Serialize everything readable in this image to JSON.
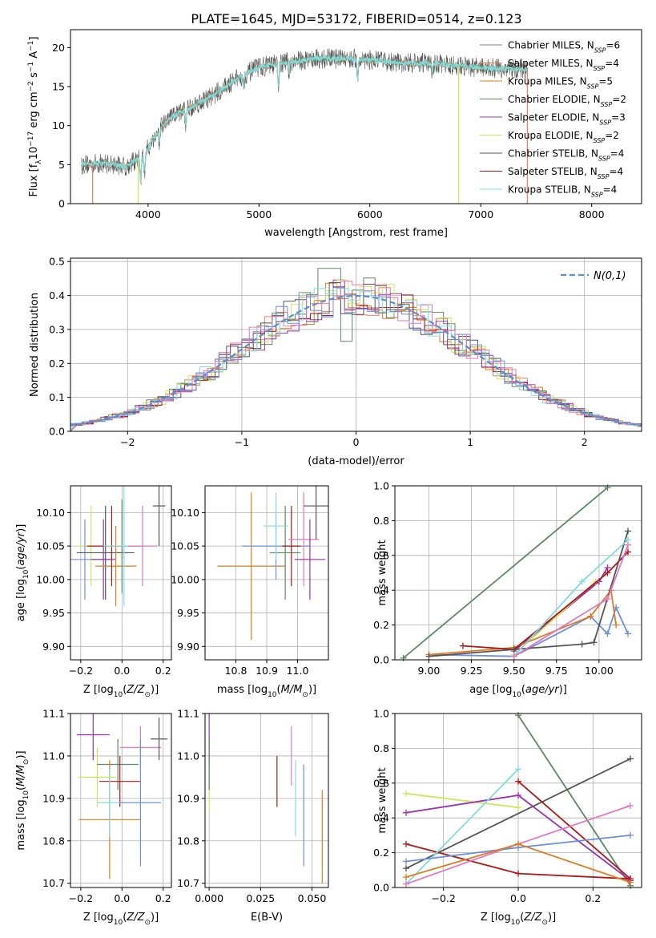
{
  "figure": {
    "title": "PLATE=1645, MJD=53172, FIBERID=0514, z=0.123"
  },
  "colors": {
    "chabrier_miles": "#808080",
    "salpeter_miles": "#ee7f6b",
    "kroupa_miles": "#e07b1c",
    "chabrier_elodie": "#5a8a60",
    "salpeter_elodie": "#9a30b0",
    "kroupa_elodie": "#cfe65a",
    "chabrier_stelib": "#555555",
    "salpeter_stelib": "#b01818",
    "kroupa_stelib": "#80dce0",
    "pink": "#e377c2",
    "blue": "#6b8fe0",
    "normal": "#5b8fd0"
  },
  "chart_data": [
    {
      "id": "spectrum",
      "type": "line",
      "xlabel": "wavelength [Angstrom, rest frame]",
      "ylabel": "Flux [f_λ 10^-17 erg cm^-2 s^-1 A^-1]",
      "xlim": [
        3300,
        8450
      ],
      "ylim": [
        0,
        22.3
      ],
      "xticks": [
        4000,
        5000,
        6000,
        7000,
        8000
      ],
      "yticks": [
        0,
        5,
        10,
        15,
        20
      ],
      "legend_position": "top-right",
      "legend": [
        "Chabrier MILES, N_SSP=6",
        "Salpeter MILES, N_SSP=4",
        "Kroupa MILES, N_SSP=5",
        "Chabrier ELODIE, N_SSP=2",
        "Salpeter ELODIE, N_SSP=3",
        "Kroupa ELODIE, N_SSP=2",
        "Chabrier STELIB, N_SSP=4",
        "Salpeter STELIB, N_SSP=4",
        "Kroupa STELIB, N_SSP=4"
      ],
      "continuum": [
        [
          3400,
          5.0
        ],
        [
          3600,
          5.2
        ],
        [
          3800,
          4.8
        ],
        [
          3950,
          6.0
        ],
        [
          4100,
          9.5
        ],
        [
          4200,
          11.0
        ],
        [
          4400,
          12.5
        ],
        [
          4600,
          14.0
        ],
        [
          4800,
          16.0
        ],
        [
          5000,
          17.5
        ],
        [
          5200,
          18.0
        ],
        [
          5500,
          18.6
        ],
        [
          5800,
          18.6
        ],
        [
          6000,
          18.4
        ],
        [
          6300,
          18.0
        ],
        [
          6500,
          18.0
        ],
        [
          6800,
          17.7
        ],
        [
          7000,
          17.4
        ],
        [
          7200,
          17.3
        ],
        [
          7420,
          17.2
        ]
      ]
    },
    {
      "id": "residuals",
      "type": "bar",
      "xlabel": "(data-model)/error",
      "ylabel": "Normed distribution",
      "xlim": [
        -2.5,
        2.5
      ],
      "ylim": [
        0,
        0.51
      ],
      "xticks": [
        -2,
        -1,
        0,
        1,
        2
      ],
      "yticks": [
        0.0,
        0.1,
        0.2,
        0.3,
        0.4,
        0.5
      ],
      "legend_position": "top-right",
      "legend": [
        "N(0,1)"
      ]
    },
    {
      "id": "age_vs_Z",
      "type": "scatter",
      "xlabel": "Z [log10(Z/Z⊙)]",
      "ylabel": "age [log10(age/yr)]",
      "xlim": [
        -0.25,
        0.24
      ],
      "ylim": [
        9.88,
        10.14
      ],
      "xticks": [
        -0.2,
        0.0,
        0.2
      ],
      "yticks": [
        9.9,
        9.95,
        10.0,
        10.05,
        10.1
      ],
      "points": [
        {
          "x": -0.15,
          "y": 10.05,
          "xerr": 0.07,
          "yerr": 0.06,
          "color": "kroupa_elodie"
        },
        {
          "x": -0.18,
          "y": 10.03,
          "xerr": 0.12,
          "yerr": 0.06,
          "color": "blue"
        },
        {
          "x": -0.08,
          "y": 10.04,
          "xerr": 0.14,
          "yerr": 0.07,
          "color": "chabrier_stelib"
        },
        {
          "x": -0.09,
          "y": 10.03,
          "xerr": 0.06,
          "yerr": 0.06,
          "color": "salpeter_elodie"
        },
        {
          "x": -0.03,
          "y": 10.02,
          "xerr": 0.1,
          "yerr": 0.06,
          "color": "kroupa_miles"
        },
        {
          "x": -0.05,
          "y": 10.05,
          "xerr": 0.12,
          "yerr": 0.06,
          "color": "salpeter_stelib"
        },
        {
          "x": 0.0,
          "y": 10.05,
          "xerr": 0.02,
          "yerr": 0.07,
          "color": "chabrier_elodie"
        },
        {
          "x": 0.01,
          "y": 10.05,
          "xerr": 0.1,
          "yerr": 0.09,
          "color": "kroupa_stelib"
        },
        {
          "x": 0.1,
          "y": 10.05,
          "xerr": 0.07,
          "yerr": 0.06,
          "color": "pink"
        },
        {
          "x": 0.18,
          "y": 10.11,
          "xerr": 0.03,
          "yerr": 0.06,
          "color": "chabrier_stelib"
        }
      ]
    },
    {
      "id": "age_vs_mass",
      "type": "scatter",
      "xlabel": "mass [log10(M/M⊙)]",
      "xlim": [
        10.7,
        11.1
      ],
      "ylim": [
        9.88,
        10.14
      ],
      "xticks": [
        10.8,
        10.9,
        11.0
      ],
      "yticks": [
        9.9,
        9.95,
        10.0,
        10.05,
        10.1
      ],
      "points": [
        {
          "x": 10.85,
          "y": 10.02,
          "xerr": 0.11,
          "yerr": 0.11,
          "color": "kroupa_miles"
        },
        {
          "x": 10.93,
          "y": 10.05,
          "xerr": 0.11,
          "yerr": 0.05,
          "color": "blue"
        },
        {
          "x": 10.96,
          "y": 10.04,
          "xerr": 0.05,
          "yerr": 0.07,
          "color": "chabrier_elodie"
        },
        {
          "x": 10.98,
          "y": 10.05,
          "xerr": 0.03,
          "yerr": 0.06,
          "color": "salpeter_stelib"
        },
        {
          "x": 10.93,
          "y": 10.08,
          "xerr": 0.04,
          "yerr": 0.05,
          "color": "kroupa_stelib"
        },
        {
          "x": 11.02,
          "y": 10.06,
          "xerr": 0.05,
          "yerr": 0.07,
          "color": "pink"
        },
        {
          "x": 11.06,
          "y": 10.11,
          "xerr": 0.04,
          "yerr": 0.05,
          "color": "chabrier_stelib"
        },
        {
          "x": 11.04,
          "y": 10.03,
          "xerr": 0.05,
          "yerr": 0.06,
          "color": "salpeter_elodie"
        }
      ]
    },
    {
      "id": "weight_vs_age",
      "type": "line",
      "xlabel": "age [log10(age/yr)]",
      "ylabel": "mass weight",
      "xlim": [
        8.8,
        10.25
      ],
      "ylim": [
        0,
        1.0
      ],
      "xticks": [
        9.0,
        9.25,
        9.5,
        9.75,
        10.0
      ],
      "yticks": [
        0.0,
        0.2,
        0.4,
        0.6,
        0.8,
        1.0
      ],
      "series": [
        {
          "color": "chabrier_elodie",
          "x": [
            8.85,
            10.05
          ],
          "y": [
            0.01,
            0.99
          ]
        },
        {
          "color": "salpeter_elodie",
          "x": [
            9.5,
            10.0,
            10.05
          ],
          "y": [
            0.05,
            0.45,
            0.53
          ]
        },
        {
          "color": "kroupa_elodie",
          "x": [
            9.5,
            9.98
          ],
          "y": [
            0.03,
            0.45
          ]
        },
        {
          "color": "blue",
          "x": [
            9.0,
            9.5,
            9.95,
            10.05,
            10.1,
            10.17
          ],
          "y": [
            0.03,
            0.02,
            0.25,
            0.15,
            0.3,
            0.15
          ]
        },
        {
          "color": "kroupa_miles",
          "x": [
            9.0,
            9.5,
            9.95,
            10.07,
            10.1
          ],
          "y": [
            0.03,
            0.07,
            0.25,
            0.4,
            0.2
          ]
        },
        {
          "color": "salpeter_stelib",
          "x": [
            9.2,
            9.5,
            10.05,
            10.17
          ],
          "y": [
            0.08,
            0.06,
            0.5,
            0.62
          ]
        },
        {
          "color": "chabrier_stelib",
          "x": [
            9.0,
            9.5,
            9.9,
            9.97,
            10.17
          ],
          "y": [
            0.02,
            0.06,
            0.09,
            0.1,
            0.74
          ]
        },
        {
          "color": "kroupa_stelib",
          "x": [
            9.5,
            9.9,
            10.17
          ],
          "y": [
            0.02,
            0.45,
            0.69
          ]
        },
        {
          "color": "pink",
          "x": [
            9.5,
            10.05,
            10.17
          ],
          "y": [
            0.02,
            0.35,
            0.66
          ]
        }
      ]
    },
    {
      "id": "mass_vs_Z",
      "type": "scatter",
      "xlabel": "Z [log10(Z/Z⊙)]",
      "ylabel": "mass [log10(M/M⊙)]",
      "xlim": [
        -0.25,
        0.24
      ],
      "ylim": [
        10.69,
        11.1
      ],
      "xticks": [
        -0.2,
        0.0,
        0.2
      ],
      "yticks": [
        10.7,
        10.8,
        10.9,
        11.0,
        11.1
      ],
      "points": [
        {
          "x": -0.14,
          "y": 11.05,
          "xerr": 0.08,
          "yerr": 0.06,
          "color": "salpeter_elodie"
        },
        {
          "x": -0.12,
          "y": 10.95,
          "xerr": 0.09,
          "yerr": 0.07,
          "color": "kroupa_elodie"
        },
        {
          "x": -0.02,
          "y": 10.98,
          "xerr": 0.1,
          "yerr": 0.06,
          "color": "chabrier_elodie"
        },
        {
          "x": -0.01,
          "y": 10.94,
          "xerr": 0.1,
          "yerr": 0.06,
          "color": "salpeter_stelib"
        },
        {
          "x": -0.06,
          "y": 10.85,
          "xerr": 0.15,
          "yerr": 0.14,
          "color": "kroupa_miles"
        },
        {
          "x": -0.06,
          "y": 10.89,
          "xerr": 0.06,
          "yerr": 0.08,
          "color": "kroupa_stelib"
        },
        {
          "x": 0.09,
          "y": 11.02,
          "xerr": 0.1,
          "yerr": 0.05,
          "color": "pink"
        },
        {
          "x": 0.09,
          "y": 10.89,
          "xerr": 0.1,
          "yerr": 0.15,
          "color": "blue"
        },
        {
          "x": 0.18,
          "y": 11.04,
          "xerr": 0.04,
          "yerr": 0.05,
          "color": "chabrier_stelib"
        }
      ]
    },
    {
      "id": "mass_vs_ebv",
      "type": "scatter",
      "xlabel": "E(B-V)",
      "xlim": [
        -0.002,
        0.058
      ],
      "ylim": [
        10.69,
        11.1
      ],
      "xticks": [
        0.0,
        0.025,
        0.05
      ],
      "yticks": [
        10.7,
        10.8,
        10.9,
        11.0,
        11.1
      ],
      "points": [
        {
          "x": 0.0,
          "y": 10.95,
          "xerr": 0,
          "yerr": 0.08,
          "color": "kroupa_elodie"
        },
        {
          "x": 0.0,
          "y": 11.04,
          "xerr": 0,
          "yerr": 0.06,
          "color": "salpeter_elodie"
        },
        {
          "x": 0.0,
          "y": 10.98,
          "xerr": 0,
          "yerr": 0.06,
          "color": "chabrier_elodie"
        },
        {
          "x": 0.033,
          "y": 10.94,
          "xerr": 0,
          "yerr": 0.06,
          "color": "salpeter_stelib"
        },
        {
          "x": 0.04,
          "y": 11.0,
          "xerr": 0,
          "yerr": 0.07,
          "color": "pink"
        },
        {
          "x": 0.042,
          "y": 10.9,
          "xerr": 0,
          "yerr": 0.09,
          "color": "kroupa_stelib"
        },
        {
          "x": 0.046,
          "y": 10.86,
          "xerr": 0,
          "yerr": 0.12,
          "color": "blue"
        },
        {
          "x": 0.055,
          "y": 10.81,
          "xerr": 0,
          "yerr": 0.11,
          "color": "kroupa_miles"
        }
      ]
    },
    {
      "id": "weight_vs_Z",
      "type": "line",
      "xlabel": "Z [log10(Z/Z⊙)]",
      "ylabel": "mass weight",
      "xlim": [
        -0.33,
        0.33
      ],
      "ylim": [
        0,
        1.0
      ],
      "xticks": [
        -0.2,
        0.0,
        0.2
      ],
      "yticks": [
        0.0,
        0.2,
        0.4,
        0.6,
        0.8,
        1.0
      ],
      "series": [
        {
          "color": "chabrier_elodie",
          "x": [
            0.0,
            0.3
          ],
          "y": [
            0.99,
            0.01
          ]
        },
        {
          "color": "chabrier_stelib",
          "x": [
            -0.3,
            0.3
          ],
          "y": [
            0.11,
            0.74
          ]
        },
        {
          "color": "kroupa_elodie",
          "x": [
            -0.3,
            0.0
          ],
          "y": [
            0.54,
            0.46
          ]
        },
        {
          "color": "salpeter_elodie",
          "x": [
            -0.3,
            0.0,
            0.3
          ],
          "y": [
            0.43,
            0.53,
            0.04
          ]
        },
        {
          "color": "salpeter_stelib",
          "x": [
            -0.3,
            0.0,
            0.3
          ],
          "y": [
            0.25,
            0.08,
            0.05
          ]
        },
        {
          "color": "salpeter_stelib",
          "x": [
            0.0,
            0.3
          ],
          "y": [
            0.61,
            0.05
          ]
        },
        {
          "color": "kroupa_stelib",
          "x": [
            -0.3,
            0.0
          ],
          "y": [
            0.02,
            0.68
          ]
        },
        {
          "color": "pink",
          "x": [
            -0.3,
            0.0,
            0.3
          ],
          "y": [
            0.02,
            0.25,
            0.47
          ]
        },
        {
          "color": "blue",
          "x": [
            -0.3,
            0.0,
            0.3
          ],
          "y": [
            0.15,
            0.23,
            0.3
          ]
        },
        {
          "color": "kroupa_miles",
          "x": [
            -0.3,
            0.0,
            0.3
          ],
          "y": [
            0.06,
            0.25,
            0.03
          ]
        }
      ]
    }
  ]
}
